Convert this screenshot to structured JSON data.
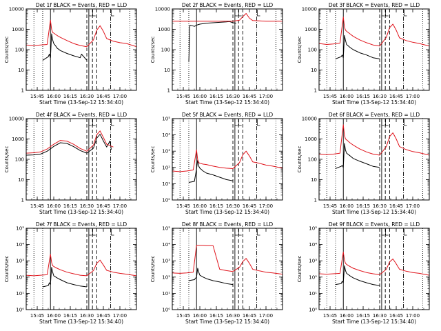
{
  "figure": {
    "colors": {
      "events": "#000000",
      "lld": "#e0141c",
      "axes": "#000000",
      "background": "#ffffff"
    }
  },
  "chart_data": [
    {
      "type": "line",
      "panel": 1,
      "title": "Det 1f BLACK = Events, RED = LLD",
      "xlabel": "Start Time (13-Sep-12 15:34:40)",
      "ylabel": "Counts/sec",
      "yscale": "log",
      "ylim": [
        1,
        10000
      ],
      "ytick_labels": [
        "1",
        "10",
        "100",
        "1000",
        "10000"
      ],
      "xtick_labels": [
        "15:45",
        "16:00",
        "16:15",
        "16:30",
        "16:45",
        "17:00"
      ],
      "series": [
        {
          "color": "#000000",
          "t": [
            15.833,
            15.917,
            15.933,
            15.95,
            15.967,
            15.983,
            16.0,
            16.03,
            16.05,
            16.1,
            16.2,
            16.3,
            16.4,
            16.42,
            16.5
          ],
          "y": [
            30,
            45,
            60,
            40,
            600,
            300,
            200,
            150,
            120,
            90,
            65,
            50,
            40,
            60,
            30
          ]
        },
        {
          "color": "#e0141c",
          "t": [
            15.583,
            15.7,
            15.8,
            15.9,
            15.95,
            15.967,
            15.983,
            16.0,
            16.05,
            16.1,
            16.2,
            16.3,
            16.4,
            16.5,
            16.6,
            16.65,
            16.7,
            16.75,
            16.8,
            16.9,
            17.0,
            17.1,
            17.25
          ],
          "y": [
            170,
            160,
            170,
            180,
            2800,
            1000,
            700,
            650,
            500,
            400,
            280,
            200,
            160,
            140,
            300,
            900,
            1500,
            800,
            350,
            260,
            220,
            200,
            140
          ]
        }
      ]
    },
    {
      "type": "line",
      "panel": 2,
      "title": "Det 2f BLACK = Events, RED = LLD",
      "xlabel": "Start Time (13-Sep-12 15:34:40)",
      "ylabel": "Counts/sec",
      "yscale": "log",
      "ylim": [
        1,
        10000
      ],
      "ytick_labels": [
        "1",
        "10",
        "100",
        "1000",
        "10000"
      ],
      "xtick_labels": [
        "15:45",
        "16:00",
        "16:15",
        "16:30",
        "16:45",
        "17:00"
      ],
      "series": [
        {
          "color": "#000000",
          "t": [
            15.833,
            15.85,
            15.88,
            15.92,
            15.95,
            16.0,
            16.1,
            16.2,
            16.3,
            16.4,
            16.45,
            16.5,
            16.55
          ],
          "y": [
            25,
            1600,
            1500,
            1400,
            1600,
            1800,
            2000,
            2100,
            2200,
            2300,
            2400,
            2100,
            2000
          ]
        },
        {
          "color": "#e0141c",
          "t": [
            15.583,
            15.7,
            15.8,
            15.9,
            16.0,
            16.1,
            16.2,
            16.3,
            16.4,
            16.5,
            16.6,
            16.65,
            16.7,
            16.75,
            16.8,
            16.9,
            17.0,
            17.25
          ],
          "y": [
            2500,
            2500,
            2500,
            2500,
            2500,
            2500,
            2500,
            2500,
            2500,
            2500,
            2800,
            4200,
            6000,
            3500,
            2700,
            2600,
            2500,
            2500
          ]
        }
      ]
    },
    {
      "type": "line",
      "panel": 3,
      "title": "Det 3f BLACK = Events, RED = LLD",
      "xlabel": "Start Time (13-Sep-12 15:34:40)",
      "ylabel": "Counts/sec",
      "yscale": "log",
      "ylim": [
        1,
        10000
      ],
      "ytick_labels": [
        "1",
        "10",
        "100",
        "1000",
        "10000"
      ],
      "xtick_labels": [
        "15:45",
        "16:00",
        "16:15",
        "16:30",
        "16:45",
        "17:00"
      ],
      "series": [
        {
          "color": "#000000",
          "t": [
            15.833,
            15.917,
            15.933,
            15.95,
            15.967,
            15.983,
            16.0,
            16.05,
            16.1,
            16.2,
            16.3,
            16.4,
            16.5
          ],
          "y": [
            35,
            45,
            55,
            40,
            500,
            280,
            180,
            130,
            100,
            70,
            55,
            40,
            35
          ]
        },
        {
          "color": "#e0141c",
          "t": [
            15.583,
            15.7,
            15.8,
            15.9,
            15.95,
            15.967,
            15.983,
            16.0,
            16.05,
            16.1,
            16.2,
            16.3,
            16.4,
            16.5,
            16.6,
            16.65,
            16.7,
            16.75,
            16.8,
            16.9,
            17.0,
            17.1,
            17.25
          ],
          "y": [
            200,
            180,
            190,
            210,
            4000,
            1300,
            900,
            800,
            600,
            450,
            300,
            220,
            170,
            150,
            400,
            1200,
            1800,
            900,
            380,
            280,
            230,
            200,
            150
          ]
        }
      ]
    },
    {
      "type": "line",
      "panel": 4,
      "title": "Det 4f BLACK = Events, RED = LLD",
      "xlabel": "Start Time (13-Sep-12 15:34:40)",
      "ylabel": "Counts/sec",
      "yscale": "log",
      "ylim": [
        1,
        10000
      ],
      "ytick_labels": [
        "1",
        "10",
        "100",
        "1000",
        "10000"
      ],
      "xtick_labels": [
        "15:45",
        "16:00",
        "16:15",
        "16:30",
        "16:45",
        "17:00"
      ],
      "series": [
        {
          "color": "#000000",
          "t": [
            15.583,
            15.7,
            15.8,
            15.9,
            16.0,
            16.1,
            16.2,
            16.3,
            16.4,
            16.5,
            16.6,
            16.65,
            16.7,
            16.75,
            16.8,
            16.85,
            16.87
          ],
          "y": [
            160,
            165,
            180,
            250,
            430,
            650,
            600,
            420,
            270,
            200,
            350,
            1100,
            1700,
            800,
            400,
            800,
            300
          ]
        },
        {
          "color": "#e0141c",
          "t": [
            15.583,
            15.7,
            15.8,
            15.9,
            16.0,
            16.1,
            16.2,
            16.3,
            16.4,
            16.5,
            16.6,
            16.65,
            16.7,
            16.75,
            16.8,
            16.9
          ],
          "y": [
            200,
            210,
            230,
            320,
            550,
            850,
            780,
            550,
            340,
            250,
            500,
            1600,
            2500,
            1200,
            550,
            400
          ]
        }
      ]
    },
    {
      "type": "line",
      "panel": 5,
      "title": "Det 5f BLACK = Events, RED = LLD",
      "xlabel": "Start Time (13-Sep-12 15:34:40)",
      "ylabel": "Counts/sec",
      "yscale": "log",
      "ylim": [
        1,
        100000
      ],
      "ytick_labels": [
        "10⁰",
        "10¹",
        "10²",
        "10³",
        "10⁴",
        "10⁵"
      ],
      "xtick_labels": [
        "15:45",
        "16:00",
        "16:15",
        "16:30",
        "16:45",
        "17:00"
      ],
      "series": [
        {
          "color": "#000000",
          "t": [
            15.833,
            15.917,
            15.95,
            15.967,
            15.983,
            16.0,
            16.05,
            16.1,
            16.2,
            16.3,
            16.4,
            16.5
          ],
          "y": [
            12,
            14,
            80,
            300,
            120,
            90,
            60,
            45,
            35,
            25,
            18,
            15
          ]
        },
        {
          "color": "#e0141c",
          "t": [
            15.583,
            15.7,
            15.8,
            15.9,
            15.95,
            15.967,
            15.983,
            16.0,
            16.05,
            16.1,
            16.2,
            16.3,
            16.4,
            16.5,
            16.6,
            16.65,
            16.7,
            16.75,
            16.8,
            16.9,
            17.0,
            17.1,
            17.25
          ],
          "y": [
            60,
            55,
            60,
            70,
            1200,
            300,
            200,
            180,
            160,
            150,
            120,
            100,
            90,
            85,
            200,
            600,
            1000,
            500,
            220,
            180,
            140,
            120,
            90
          ]
        }
      ]
    },
    {
      "type": "line",
      "panel": 6,
      "title": "Det 6f BLACK = Events, RED = LLD",
      "xlabel": "Start Time (13-Sep-12 15:34:40)",
      "ylabel": "Counts/sec",
      "yscale": "log",
      "ylim": [
        1,
        10000
      ],
      "ytick_labels": [
        "1",
        "10",
        "100",
        "1000",
        "10000"
      ],
      "xtick_labels": [
        "15:45",
        "16:00",
        "16:15",
        "16:30",
        "16:45",
        "17:00"
      ],
      "series": [
        {
          "color": "#000000",
          "t": [
            15.833,
            15.917,
            15.933,
            15.95,
            15.967,
            15.983,
            16.0,
            16.05,
            16.1,
            16.2,
            16.3,
            16.4,
            16.5
          ],
          "y": [
            35,
            45,
            50,
            40,
            600,
            280,
            200,
            150,
            110,
            80,
            60,
            45,
            40
          ]
        },
        {
          "color": "#e0141c",
          "t": [
            15.583,
            15.7,
            15.8,
            15.9,
            15.95,
            15.967,
            15.983,
            16.0,
            16.05,
            16.1,
            16.2,
            16.3,
            16.4,
            16.5,
            16.6,
            16.65,
            16.7,
            16.75,
            16.8,
            16.9,
            17.0,
            17.1,
            17.25
          ],
          "y": [
            180,
            170,
            180,
            200,
            5000,
            1500,
            1000,
            900,
            650,
            500,
            320,
            230,
            180,
            160,
            420,
            1300,
            2000,
            1000,
            420,
            300,
            240,
            210,
            160
          ]
        }
      ]
    },
    {
      "type": "line",
      "panel": 7,
      "title": "Det 7f BLACK = Events, RED = LLD",
      "xlabel": "Start Time (13-Sep-12 15:34:40)",
      "ylabel": "Counts/sec",
      "yscale": "log",
      "ylim": [
        1,
        100000
      ],
      "ytick_labels": [
        "10⁰",
        "10¹",
        "10²",
        "10³",
        "10⁴",
        "10⁵"
      ],
      "xtick_labels": [
        "15:45",
        "16:00",
        "16:15",
        "16:30",
        "16:45",
        "17:00"
      ],
      "series": [
        {
          "color": "#000000",
          "t": [
            15.833,
            15.917,
            15.933,
            15.95,
            15.967,
            15.983,
            16.0,
            16.05,
            16.1,
            16.2,
            16.3,
            16.4,
            16.5
          ],
          "y": [
            25,
            30,
            45,
            35,
            400,
            200,
            120,
            90,
            70,
            45,
            35,
            28,
            25
          ]
        },
        {
          "color": "#e0141c",
          "t": [
            15.583,
            15.7,
            15.8,
            15.9,
            15.95,
            15.967,
            15.983,
            16.0,
            16.05,
            16.1,
            16.2,
            16.3,
            16.4,
            16.5,
            16.6,
            16.65,
            16.7,
            16.75,
            16.8,
            16.9,
            17.0,
            17.1,
            17.25
          ],
          "y": [
            130,
            120,
            130,
            140,
            2500,
            800,
            500,
            450,
            350,
            280,
            200,
            160,
            130,
            120,
            250,
            700,
            1100,
            550,
            260,
            200,
            170,
            150,
            120
          ]
        }
      ]
    },
    {
      "type": "line",
      "panel": 8,
      "title": "Det 8f BLACK = Events, RED = LLD",
      "xlabel": "Start Time (13-Sep-12 15:34:40)",
      "ylabel": "Counts/sec",
      "yscale": "log",
      "ylim": [
        1,
        100000
      ],
      "ytick_labels": [
        "10⁰",
        "10¹",
        "10²",
        "10³",
        "10⁴",
        "10⁵"
      ],
      "xtick_labels": [
        "15:45",
        "16:00",
        "16:15",
        "16:30",
        "16:45",
        "17:00"
      ],
      "series": [
        {
          "color": "#000000",
          "t": [
            15.833,
            15.917,
            15.95,
            15.967,
            15.983,
            16.0,
            16.05,
            16.1,
            16.2,
            16.3,
            16.4,
            16.5
          ],
          "y": [
            60,
            70,
            100,
            350,
            200,
            130,
            100,
            80,
            60,
            50,
            40,
            35
          ]
        },
        {
          "color": "#e0141c",
          "t": [
            15.583,
            15.7,
            15.8,
            15.9,
            15.95,
            15.967,
            15.983,
            16.0,
            16.05,
            16.1,
            16.2,
            16.3,
            16.4,
            16.5,
            16.6,
            16.65,
            16.7,
            16.75,
            16.8,
            16.9,
            17.0,
            17.1,
            17.25
          ],
          "y": [
            180,
            170,
            180,
            200,
            9000,
            9000,
            9000,
            9000,
            9000,
            8500,
            8500,
            300,
            250,
            220,
            400,
            900,
            1400,
            700,
            300,
            240,
            200,
            180,
            150
          ]
        }
      ]
    },
    {
      "type": "line",
      "panel": 9,
      "title": "Det 9f BLACK = Events, RED = LLD",
      "xlabel": "Start Time (13-Sep-12 15:34:40)",
      "ylabel": "Counts/sec",
      "yscale": "log",
      "ylim": [
        1,
        100000
      ],
      "ytick_labels": [
        "10⁰",
        "10¹",
        "10²",
        "10³",
        "10⁴",
        "10⁵"
      ],
      "xtick_labels": [
        "15:45",
        "16:00",
        "16:15",
        "16:30",
        "16:45",
        "17:00"
      ],
      "series": [
        {
          "color": "#000000",
          "t": [
            15.833,
            15.917,
            15.933,
            15.95,
            15.967,
            15.983,
            16.0,
            16.05,
            16.1,
            16.2,
            16.3,
            16.4,
            16.5
          ],
          "y": [
            35,
            40,
            55,
            45,
            500,
            250,
            170,
            120,
            90,
            60,
            45,
            35,
            30
          ]
        },
        {
          "color": "#e0141c",
          "t": [
            15.583,
            15.7,
            15.8,
            15.9,
            15.95,
            15.967,
            15.983,
            16.0,
            16.05,
            16.1,
            16.2,
            16.3,
            16.4,
            16.5,
            16.6,
            16.65,
            16.7,
            16.75,
            16.8,
            16.9,
            17.0,
            17.1,
            17.25
          ],
          "y": [
            160,
            150,
            160,
            170,
            3500,
            1100,
            700,
            600,
            450,
            350,
            250,
            190,
            160,
            140,
            300,
            850,
            1300,
            650,
            300,
            230,
            190,
            170,
            130
          ]
        }
      ]
    }
  ]
}
